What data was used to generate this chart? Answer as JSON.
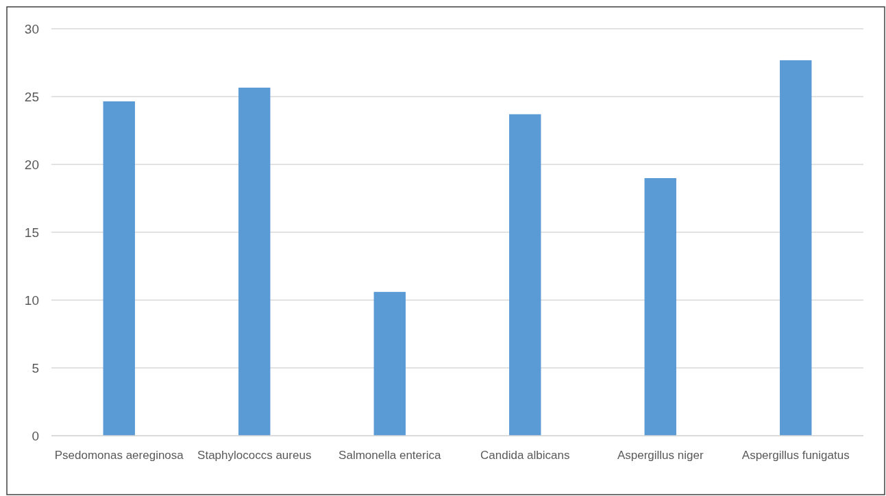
{
  "chart_data": {
    "type": "bar",
    "categories": [
      "Psedomonas aereginosa",
      "Staphylococcs aureus",
      "Salmonella enterica",
      "Candida albicans",
      "Aspergillus niger",
      "Aspergillus funigatus"
    ],
    "values": [
      24.65,
      25.66,
      10.6,
      23.7,
      18.99,
      27.68
    ],
    "color": "#5b9bd5",
    "ylim": [
      0,
      30
    ],
    "yticks": [
      0,
      5,
      10,
      15,
      20,
      25,
      30
    ],
    "grid": "y"
  }
}
